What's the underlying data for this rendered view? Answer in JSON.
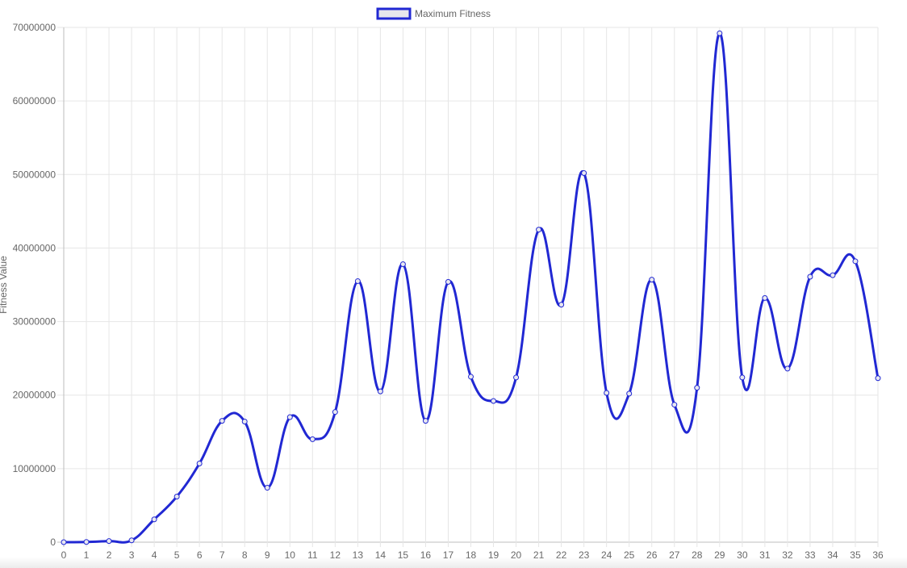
{
  "colors": {
    "series_line": "#2128d3",
    "legend_fill": "#e6e6ec",
    "grid": "#e6e6e6",
    "text": "#666666"
  },
  "chart_data": {
    "type": "line",
    "title": "",
    "xlabel": "",
    "ylabel": "Fitness Value",
    "ylim": [
      0,
      70000000
    ],
    "y_ticks": [
      "0",
      "10000000",
      "20000000",
      "30000000",
      "40000000",
      "50000000",
      "60000000",
      "70000000"
    ],
    "grid": true,
    "legend_position": "top-center",
    "curve": "smooth",
    "point_style": "hollow-circle",
    "x": [
      0,
      1,
      2,
      3,
      4,
      5,
      6,
      7,
      8,
      9,
      10,
      11,
      12,
      13,
      14,
      15,
      16,
      17,
      18,
      19,
      20,
      21,
      22,
      23,
      24,
      25,
      26,
      27,
      28,
      29,
      30,
      31,
      32,
      33,
      34,
      35,
      36
    ],
    "series": [
      {
        "name": "Maximum Fitness",
        "color": "#2128d3",
        "values": [
          0,
          30000,
          150000,
          250000,
          3100000,
          6200000,
          10700000,
          16500000,
          16400000,
          7400000,
          17000000,
          14000000,
          17700000,
          35500000,
          20500000,
          37800000,
          16500000,
          35400000,
          22500000,
          19200000,
          22400000,
          42500000,
          32300000,
          50200000,
          20300000,
          20200000,
          35700000,
          18700000,
          21000000,
          69200000,
          22400000,
          33200000,
          23600000,
          36100000,
          36300000,
          38200000,
          22300000
        ]
      }
    ]
  }
}
